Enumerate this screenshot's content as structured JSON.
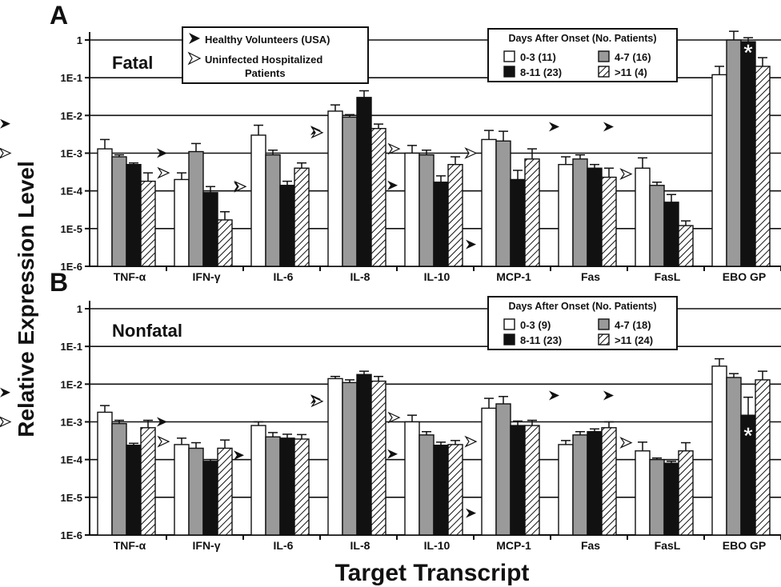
{
  "figure": {
    "ylabel": "Relative Expression Level",
    "xlabel": "Target Transcript",
    "marker_legend": {
      "healthy": "Healthy Volunteers (USA)",
      "uninfected_line1": "Uninfected Hospitalized",
      "uninfected_line2": "Patients"
    }
  },
  "chart_data": [
    {
      "type": "bar",
      "panel_letter": "A",
      "panel_title": "Fatal",
      "y_scale": "log",
      "ylim": [
        1e-06,
        1
      ],
      "y_tick_labels": [
        "1E-6",
        "1E-5",
        "1E-4",
        "1E-3",
        "1E-2",
        "1E-1",
        "1"
      ],
      "categories": [
        "TNF-α",
        "IFN-γ",
        "IL-6",
        "IL-8",
        "IL-10",
        "MCP-1",
        "Fas",
        "FasL",
        "EBO GP"
      ],
      "legend": {
        "title": "Days After Onset (No. Patients)",
        "position": "top-right",
        "fill_styles": [
          "white",
          "gray",
          "black",
          "hatched"
        ]
      },
      "series": [
        {
          "name": "0-3 (11)",
          "values": [
            0.0013,
            0.0002,
            0.003,
            0.013,
            0.001,
            0.0023,
            0.0005,
            0.0004,
            0.12
          ],
          "errors": [
            0.0023,
            0.0003,
            0.0055,
            0.019,
            0.0016,
            0.004,
            0.0008,
            0.00075,
            0.2
          ]
        },
        {
          "name": "4-7 (16)",
          "values": [
            0.0008,
            0.0011,
            0.0009,
            0.009,
            0.0009,
            0.0021,
            0.0007,
            0.00014,
            1.0
          ],
          "errors": [
            0.0009,
            0.0018,
            0.0012,
            0.0105,
            0.0012,
            0.0038,
            0.0009,
            0.00017,
            1.7
          ]
        },
        {
          "name": "8-11 (23)",
          "values": [
            0.0005,
            9e-05,
            0.00014,
            0.03,
            0.00017,
            0.0002,
            0.0004,
            5e-05,
            0.9
          ],
          "errors": [
            0.00055,
            0.00013,
            0.00018,
            0.045,
            0.00025,
            0.00035,
            0.0005,
            8e-05,
            1.15
          ]
        },
        {
          "name": ">11 (4)",
          "values": [
            0.00018,
            1.7e-05,
            0.0004,
            0.0045,
            0.0005,
            0.0007,
            0.00023,
            1.2e-05,
            0.2
          ],
          "errors": [
            0.0003,
            2.8e-05,
            0.00055,
            0.0059,
            0.0008,
            0.0013,
            0.0004,
            1.6e-05,
            0.34
          ]
        }
      ],
      "healthy_volunteers": [
        0.006,
        0.001,
        0.00013,
        0.004,
        0.00014,
        3.8e-06,
        0.005,
        0.005,
        null
      ],
      "uninfected_hospitalized": [
        0.001,
        0.0003,
        0.00013,
        0.0035,
        0.0013,
        0.001,
        null,
        0.00028,
        null
      ],
      "significance": [
        {
          "category": "EBO GP",
          "series": "8-11 (23)",
          "symbol": "*"
        }
      ]
    },
    {
      "type": "bar",
      "panel_letter": "B",
      "panel_title": "Nonfatal",
      "y_scale": "log",
      "ylim": [
        1e-06,
        1
      ],
      "y_tick_labels": [
        "1E-6",
        "1E-5",
        "1E-4",
        "1E-3",
        "1E-2",
        "1E-1",
        "1"
      ],
      "categories": [
        "TNF-α",
        "IFN-γ",
        "IL-6",
        "IL-8",
        "IL-10",
        "MCP-1",
        "Fas",
        "FasL",
        "EBO GP"
      ],
      "legend": {
        "title": "Days After Onset (No. Patients)",
        "position": "top-right",
        "fill_styles": [
          "white",
          "gray",
          "black",
          "hatched"
        ]
      },
      "series": [
        {
          "name": "0-3 (9)",
          "values": [
            0.0018,
            0.00025,
            0.0008,
            0.014,
            0.001,
            0.0023,
            0.00025,
            0.00017,
            0.03
          ],
          "errors": [
            0.0027,
            0.00037,
            0.001,
            0.016,
            0.0015,
            0.0042,
            0.00032,
            0.00029,
            0.047
          ]
        },
        {
          "name": "4-7 (18)",
          "values": [
            0.0009,
            0.0002,
            0.0004,
            0.011,
            0.00045,
            0.003,
            0.00045,
            0.0001,
            0.015
          ],
          "errors": [
            0.0011,
            0.00028,
            0.00052,
            0.013,
            0.00055,
            0.0047,
            0.00055,
            0.00011,
            0.019
          ]
        },
        {
          "name": "8-11 (23)",
          "values": [
            0.00024,
            9e-05,
            0.00037,
            0.018,
            0.00024,
            0.0008,
            0.00055,
            8e-05,
            0.0015
          ],
          "errors": [
            0.00027,
            0.0001,
            0.00047,
            0.022,
            0.00029,
            0.00105,
            0.00065,
            9e-05,
            0.0045
          ]
        },
        {
          "name": ">11 (24)",
          "values": [
            0.0007,
            0.0002,
            0.00035,
            0.012,
            0.00025,
            0.0008,
            0.0007,
            0.00017,
            0.013
          ],
          "errors": [
            0.0011,
            0.00033,
            0.00046,
            0.016,
            0.00032,
            0.0011,
            0.001,
            0.00028,
            0.022
          ]
        }
      ],
      "healthy_volunteers": [
        0.006,
        0.001,
        0.00013,
        0.004,
        0.00014,
        3.8e-06,
        0.005,
        0.005,
        null
      ],
      "uninfected_hospitalized": [
        0.001,
        0.0003,
        null,
        0.0035,
        0.0013,
        0.0003,
        null,
        0.00028,
        null
      ],
      "significance": [
        {
          "category": "EBO GP",
          "series": "8-11 (23)",
          "symbol": "*"
        }
      ]
    }
  ]
}
